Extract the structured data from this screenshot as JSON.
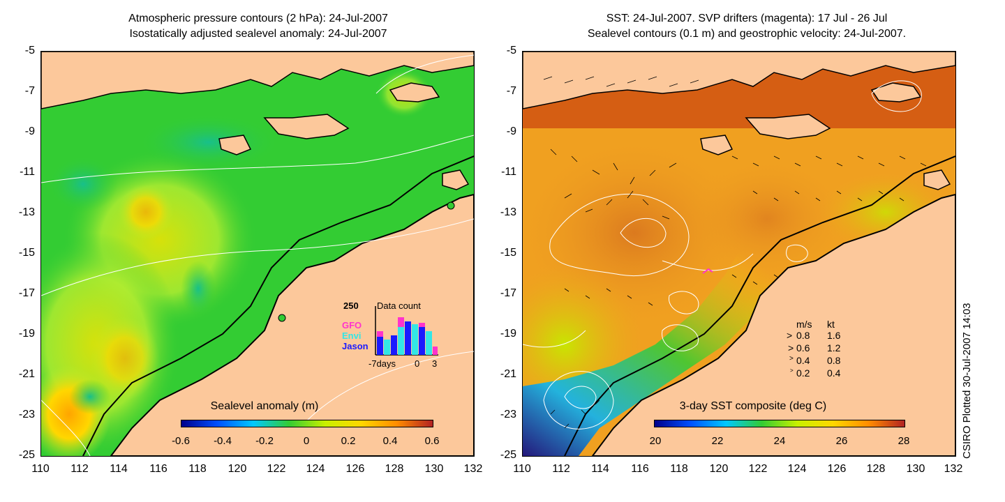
{
  "left_panel": {
    "title_line1": "Atmospheric pressure contours (2 hPa): 24-Jul-2007",
    "title_line2": "Isostatically adjusted sealevel anomaly: 24-Jul-2007",
    "colorbar_title": "Sealevel anomaly (m)",
    "colorbar_labels": [
      "-0.6",
      "-0.4",
      "-0.2",
      "0",
      "0.2",
      "0.4",
      "0.6"
    ],
    "inset": {
      "top_value": "250",
      "title": "Data count",
      "series": [
        {
          "name": "GFO",
          "color": "#ff33cc"
        },
        {
          "name": "Envi",
          "color": "#33e6e6"
        },
        {
          "name": "Jason",
          "color": "#1a1aff"
        }
      ],
      "x_labels": [
        "-7days",
        "0",
        "3"
      ]
    }
  },
  "right_panel": {
    "title_line1": "SST: 24-Jul-2007. SVP drifters (magenta): 17 Jul - 26 Jul",
    "title_line2": "Sealevel contours (0.1 m) and geostrophic velocity: 24-Jul-2007.",
    "colorbar_title": "3-day SST composite (deg C)",
    "colorbar_labels": [
      "20",
      "22",
      "24",
      "26",
      "28"
    ],
    "velocity_legend": {
      "header_ms": "m/s",
      "header_kt": "kt",
      "rows": [
        {
          "ms": "0.8",
          "kt": "1.6"
        },
        {
          "ms": "0.6",
          "kt": "1.2"
        },
        {
          "ms": "0.4",
          "kt": "0.8"
        },
        {
          "ms": "0.2",
          "kt": "0.4"
        }
      ]
    }
  },
  "axes": {
    "y_ticks": [
      "-5",
      "-7",
      "-9",
      "-11",
      "-13",
      "-15",
      "-17",
      "-19",
      "-21",
      "-23",
      "-25"
    ],
    "x_ticks": [
      "110",
      "112",
      "114",
      "116",
      "118",
      "120",
      "122",
      "124",
      "126",
      "128",
      "130",
      "132"
    ]
  },
  "credit": "CSIRO Plotted 30-Jul-2007 14:03",
  "colors": {
    "land": "#fcc89b",
    "sla_ocean": "#33cc33",
    "sst_ocean": "#f0a020"
  }
}
